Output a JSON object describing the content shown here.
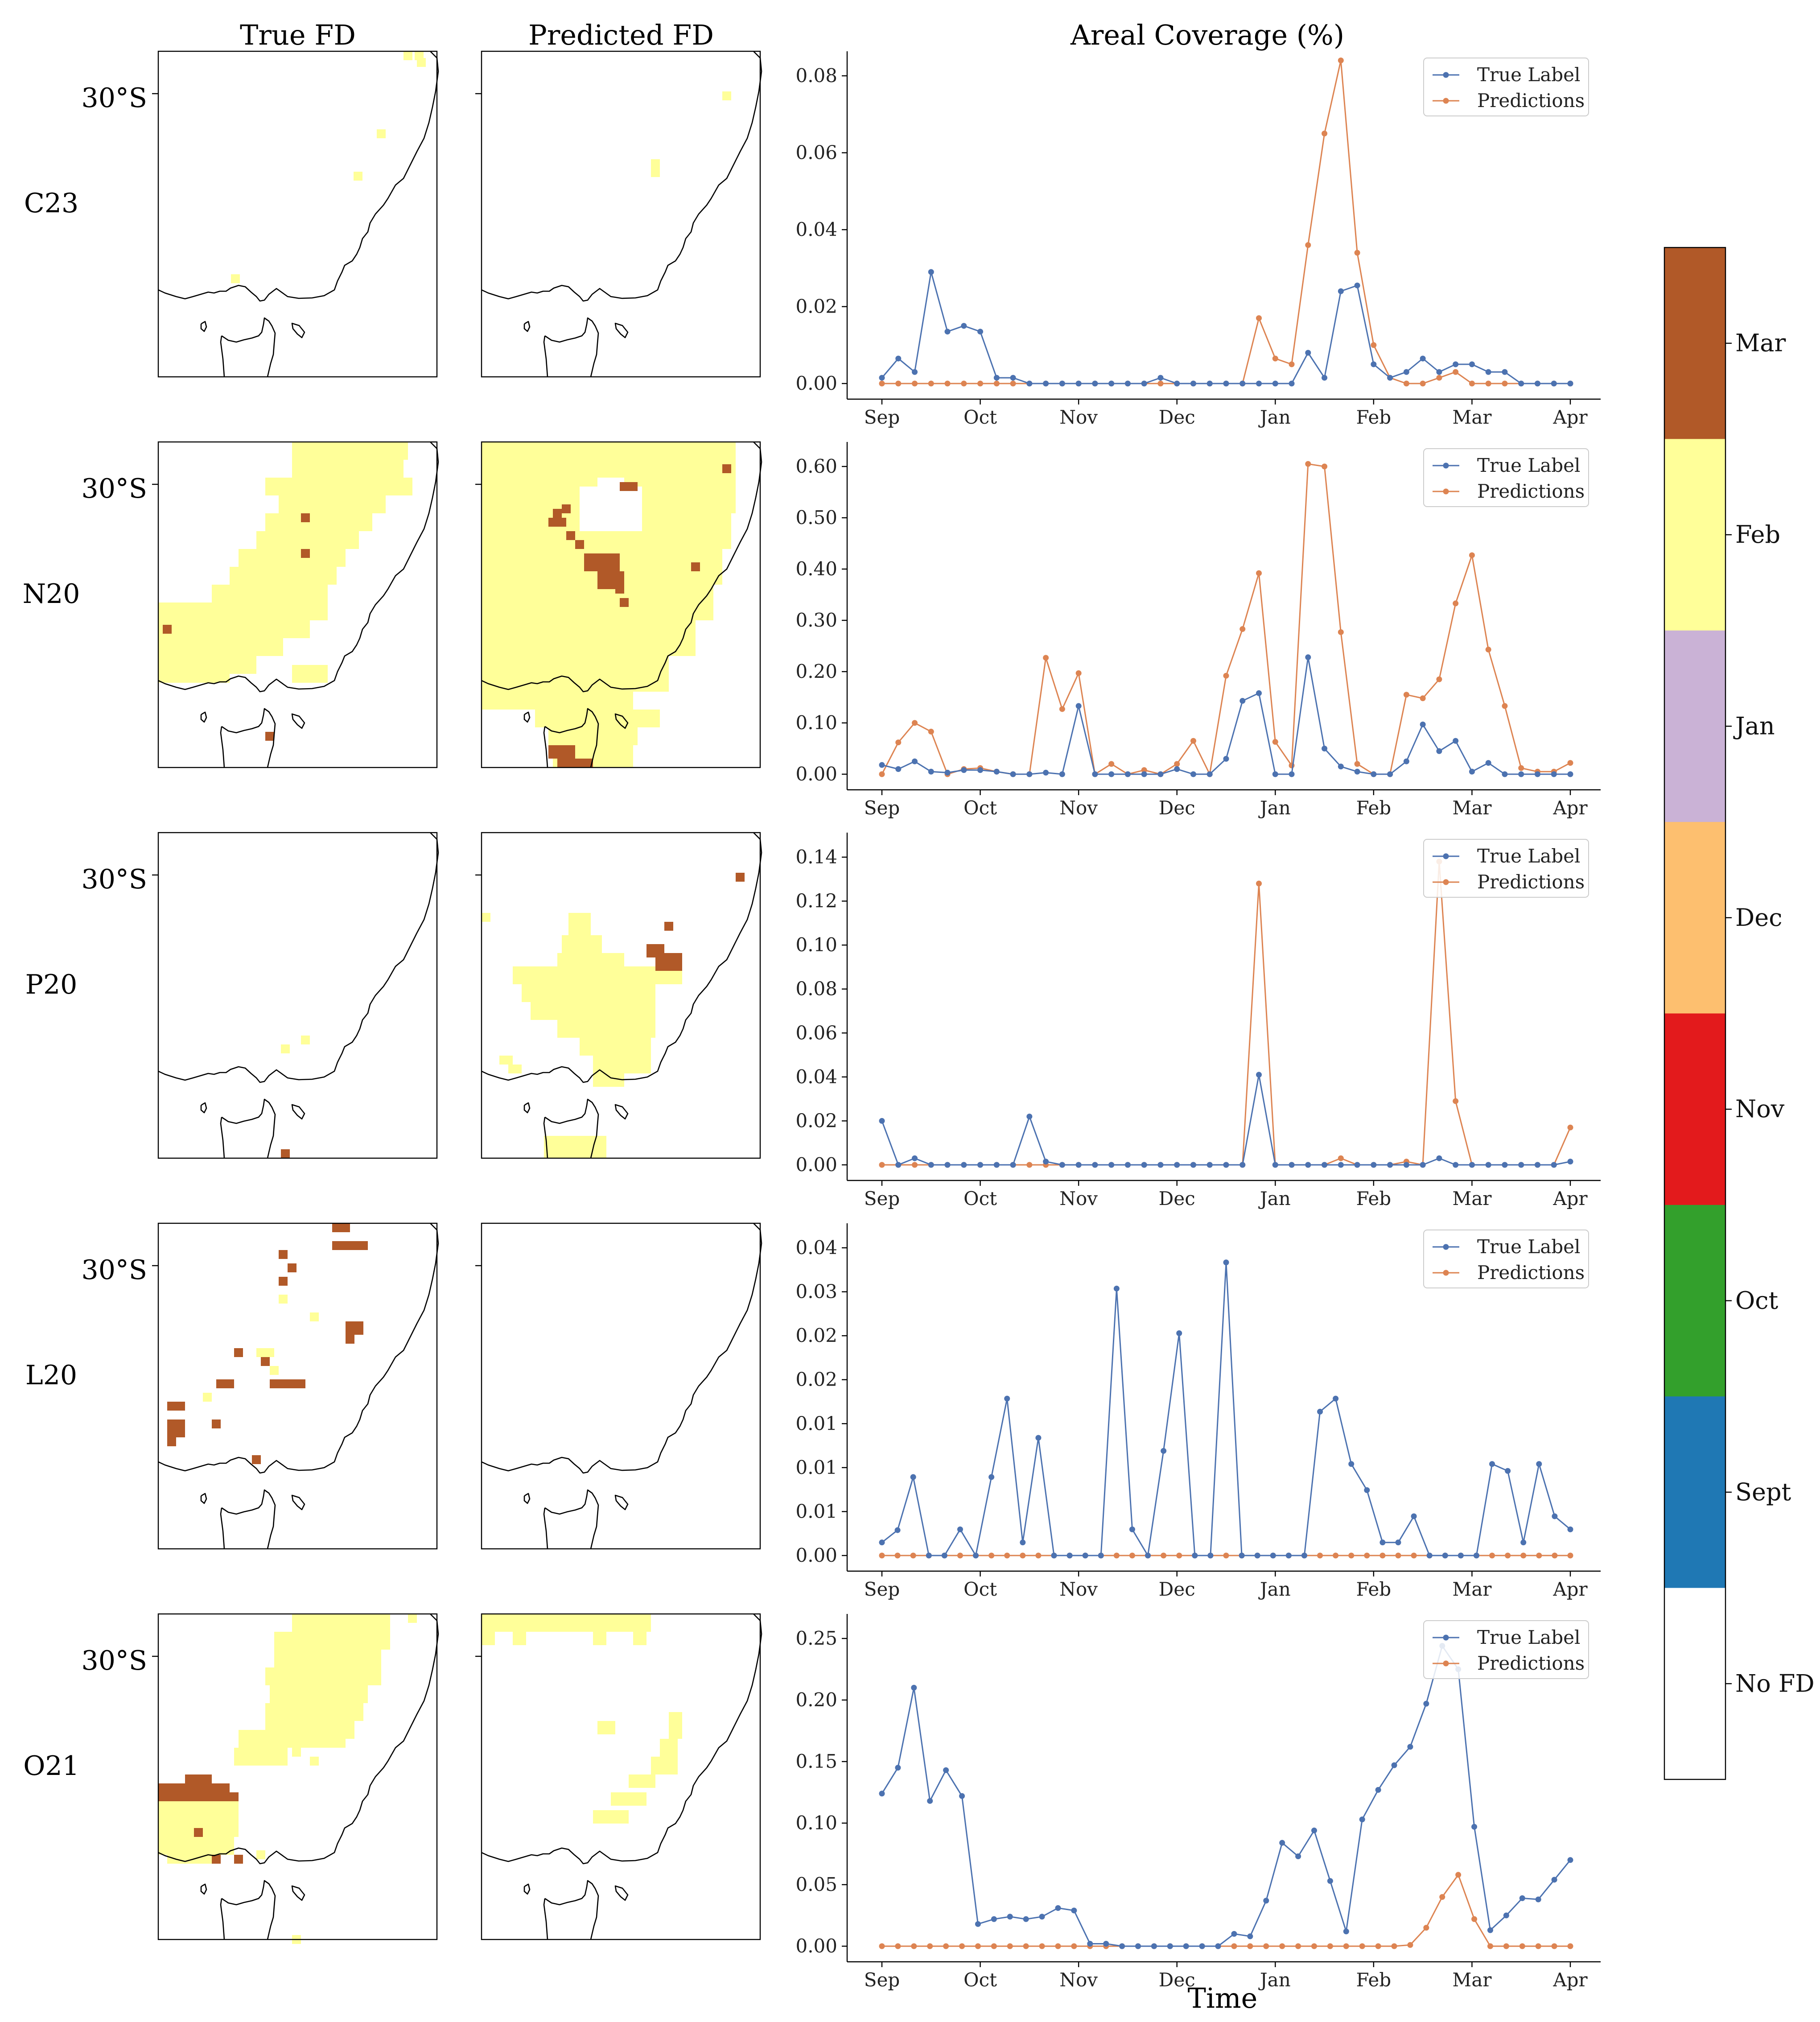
{
  "column_titles": {
    "true_fd": "True FD",
    "predicted_fd": "Predicted FD",
    "areal_coverage": "Areal Coverage (%)"
  },
  "map_lat_label": "30°S",
  "xlabel": "Time",
  "month_ticks": [
    "Sep",
    "Oct",
    "Nov",
    "Dec",
    "Jan",
    "Feb",
    "Mar",
    "Apr"
  ],
  "legend": {
    "true": "True Label",
    "pred": "Predictions"
  },
  "colors": {
    "true_line": "#4c72b0",
    "pred_line": "#dd8452",
    "fd_feb": "#ffff99",
    "fd_mar": "#b15928"
  },
  "colorbar": {
    "labels": [
      "Mar",
      "Feb",
      "Jan",
      "Dec",
      "Nov",
      "Oct",
      "Sept",
      "No FD"
    ],
    "colors": [
      "#b15928",
      "#ffff99",
      "#cab2d6",
      "#fdbf6f",
      "#e31a1c",
      "#33a02c",
      "#1f78b4",
      "#ffffff"
    ]
  },
  "chart_data": [
    {
      "type": "line",
      "region": "C23",
      "y_ticks": [
        "0.00",
        "0.02",
        "0.04",
        "0.06",
        "0.08"
      ],
      "series": [
        {
          "name": "True Label",
          "values": [
            0.0015,
            0.0065,
            0.003,
            0.029,
            0.0135,
            0.015,
            0.0135,
            0.0015,
            0.0015,
            0,
            0,
            0,
            0,
            0,
            0,
            0,
            0,
            0.0015,
            0,
            0,
            0,
            0,
            0,
            0,
            0,
            0,
            0.008,
            0.0015,
            0.024,
            0.0255,
            0.005,
            0.0015,
            0.003,
            0.0065,
            0.003,
            0.005,
            0.005,
            0.003,
            0.003,
            0,
            0,
            0,
            0
          ]
        },
        {
          "name": "Predictions",
          "values": [
            0,
            0,
            0,
            0,
            0,
            0,
            0,
            0,
            0,
            0,
            0,
            0,
            0,
            0,
            0,
            0,
            0,
            0,
            0,
            0,
            0,
            0,
            0,
            0.017,
            0.0065,
            0.005,
            0.036,
            0.065,
            0.084,
            0.034,
            0.01,
            0.0015,
            0,
            0,
            0.0015,
            0.003,
            0,
            0,
            0,
            0,
            0,
            0,
            0
          ]
        }
      ]
    },
    {
      "type": "line",
      "region": "N20",
      "y_ticks": [
        "0.00",
        "0.10",
        "0.20",
        "0.30",
        "0.40",
        "0.50",
        "0.60"
      ],
      "series": [
        {
          "name": "True Label",
          "values": [
            0.018,
            0.01,
            0.025,
            0.005,
            0.003,
            0.008,
            0.008,
            0.005,
            0,
            0,
            0.003,
            0,
            0.133,
            0,
            0,
            0,
            0,
            0,
            0.01,
            0,
            0,
            0.03,
            0.143,
            0.158,
            0,
            0,
            0.228,
            0.05,
            0.015,
            0.005,
            0,
            0,
            0.025,
            0.097,
            0.045,
            0.065,
            0.005,
            0.022,
            0,
            0,
            0,
            0,
            0
          ]
        },
        {
          "name": "Predictions",
          "values": [
            0,
            0.062,
            0.1,
            0.083,
            0,
            0.01,
            0.012,
            0.005,
            0,
            0,
            0.227,
            0.127,
            0.197,
            0,
            0.02,
            0,
            0.008,
            0,
            0.02,
            0.065,
            0,
            0.192,
            0.283,
            0.392,
            0.063,
            0.017,
            0.605,
            0.6,
            0.277,
            0.02,
            0,
            0,
            0.155,
            0.148,
            0.185,
            0.333,
            0.427,
            0.243,
            0.133,
            0.012,
            0.005,
            0.005,
            0.022
          ]
        }
      ]
    },
    {
      "type": "line",
      "region": "P20",
      "y_ticks": [
        "0.00",
        "0.02",
        "0.04",
        "0.06",
        "0.08",
        "0.10",
        "0.12",
        "0.14"
      ],
      "series": [
        {
          "name": "True Label",
          "values": [
            0.02,
            0,
            0.003,
            0,
            0,
            0,
            0,
            0,
            0,
            0.022,
            0.0015,
            0,
            0,
            0,
            0,
            0,
            0,
            0,
            0,
            0,
            0,
            0,
            0,
            0.041,
            0,
            0,
            0,
            0,
            0,
            0,
            0,
            0,
            0,
            0,
            0.003,
            0,
            0,
            0,
            0,
            0,
            0,
            0,
            0.0015
          ]
        },
        {
          "name": "Predictions",
          "values": [
            0,
            0,
            0,
            0,
            0,
            0,
            0,
            0,
            0,
            0,
            0,
            0,
            0,
            0,
            0,
            0,
            0,
            0,
            0,
            0,
            0,
            0,
            0,
            0.128,
            0,
            0,
            0,
            0,
            0.003,
            0,
            0,
            0,
            0.0015,
            0,
            0.138,
            0.029,
            0,
            0,
            0,
            0,
            0,
            0,
            0.017
          ]
        }
      ]
    },
    {
      "type": "line",
      "region": "L20",
      "y_ticks": [
        "0.00",
        "0.01",
        "0.01",
        "0.01",
        "0.02",
        "0.02",
        "0.03",
        "0.04"
      ],
      "series": [
        {
          "name": "True Label",
          "values": [
            0.0017,
            0.0033,
            0.0102,
            0,
            0,
            0.0034,
            0,
            0.0102,
            0.0204,
            0.0017,
            0.0153,
            0,
            0,
            0,
            0,
            0.0347,
            0.0034,
            0,
            0.0136,
            0.0289,
            0,
            0,
            0.0381,
            0,
            0,
            0,
            0,
            0,
            0.0187,
            0.0204,
            0.0119,
            0.0085,
            0.0017,
            0.0017,
            0.0051,
            0,
            0,
            0,
            0,
            0.0119,
            0.011,
            0.0017,
            0.0119,
            0.0051,
            0.0034
          ]
        },
        {
          "name": "Predictions",
          "values": [
            0,
            0,
            0,
            0,
            0,
            0,
            0,
            0,
            0,
            0,
            0,
            0,
            0,
            0,
            0,
            0,
            0,
            0,
            0,
            0,
            0,
            0,
            0,
            0,
            0,
            0,
            0,
            0,
            0,
            0,
            0,
            0,
            0,
            0,
            0,
            0,
            0,
            0,
            0,
            0,
            0,
            0,
            0,
            0,
            0
          ]
        }
      ]
    },
    {
      "type": "line",
      "region": "O21",
      "y_ticks": [
        "0.00",
        "0.05",
        "0.10",
        "0.15",
        "0.20",
        "0.25"
      ],
      "series": [
        {
          "name": "True Label",
          "values": [
            0.124,
            0.145,
            0.21,
            0.118,
            0.143,
            0.122,
            0.018,
            0.022,
            0.024,
            0.022,
            0.024,
            0.031,
            0.029,
            0.002,
            0.002,
            0,
            0,
            0,
            0,
            0,
            0,
            0,
            0.01,
            0.008,
            0.037,
            0.084,
            0.073,
            0.094,
            0.053,
            0.012,
            0.103,
            0.127,
            0.147,
            0.162,
            0.197,
            0.244,
            0.225,
            0.097,
            0.013,
            0.025,
            0.039,
            0.038,
            0.054,
            0.07
          ]
        },
        {
          "name": "Predictions",
          "values": [
            0,
            0,
            0,
            0,
            0,
            0,
            0,
            0,
            0,
            0,
            0,
            0,
            0,
            0,
            0,
            0,
            0,
            0,
            0,
            0,
            0,
            0,
            0,
            0,
            0,
            0,
            0,
            0,
            0,
            0,
            0,
            0,
            0,
            0.001,
            0.015,
            0.04,
            0.058,
            0.022,
            0,
            0,
            0,
            0,
            0,
            0
          ]
        }
      ]
    }
  ]
}
